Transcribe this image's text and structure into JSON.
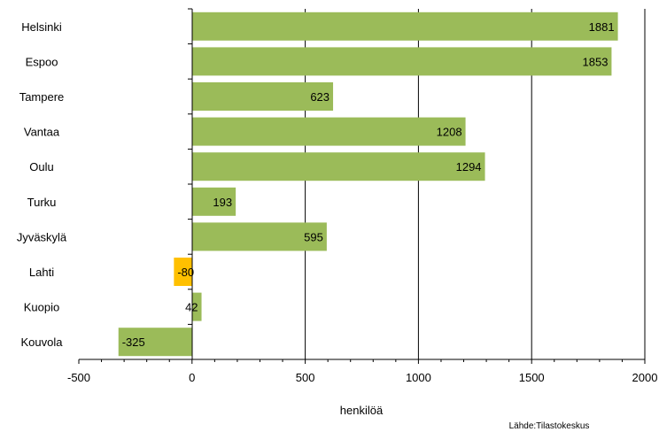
{
  "chart_data": {
    "type": "bar",
    "orientation": "horizontal",
    "categories": [
      "Helsinki",
      "Espoo",
      "Tampere",
      "Vantaa",
      "Oulu",
      "Turku",
      "Jyväskylä",
      "Lahti",
      "Kuopio",
      "Kouvola"
    ],
    "values": [
      1881,
      1853,
      623,
      1208,
      1294,
      193,
      595,
      -80,
      42,
      -325
    ],
    "data_labels": [
      "1881",
      "1853",
      "623",
      "1208",
      "1294",
      "193",
      "595",
      "-80",
      "42",
      "-325"
    ],
    "bar_colors": [
      "#9bbb59",
      "#9bbb59",
      "#9bbb59",
      "#9bbb59",
      "#9bbb59",
      "#9bbb59",
      "#9bbb59",
      "#ffc000",
      "#9bbb59",
      "#9bbb59"
    ],
    "xlim": [
      -500,
      2000
    ],
    "xticks": [
      -500,
      0,
      500,
      1000,
      1500,
      2000
    ],
    "xtick_labels": [
      "-500",
      "0",
      "500",
      "1000",
      "1500",
      "2000"
    ],
    "xlabel": "henkilöä",
    "ylabel": "",
    "title": "",
    "grid": "vertical major gridlines",
    "legend": "none",
    "source": "Lähde:Tilastokeskus"
  }
}
